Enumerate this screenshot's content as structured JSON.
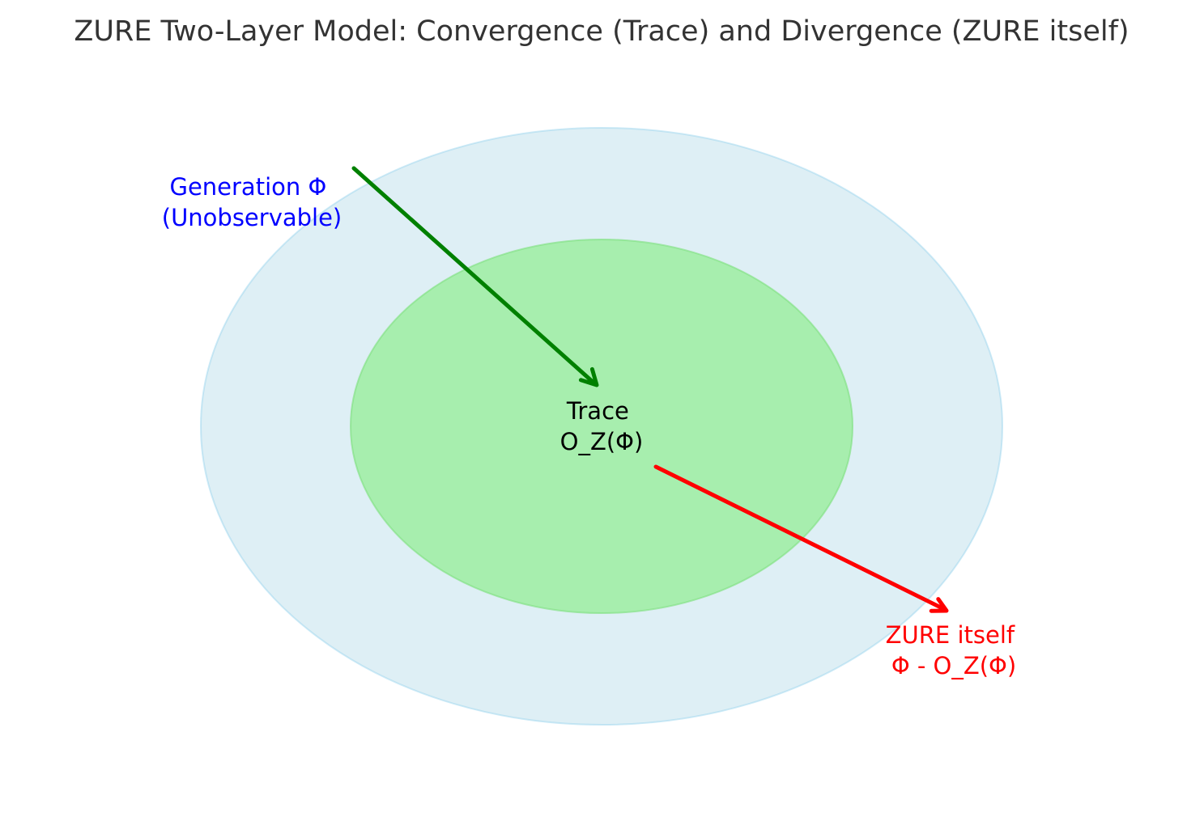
{
  "title": "ZURE Two-Layer Model: Convergence (Trace) and Divergence (ZURE itself)",
  "labels": {
    "generation": {
      "line1": "Generation Φ",
      "line2": "(Unobservable)"
    },
    "trace": {
      "line1": "Trace",
      "line2": "O_Z(Φ)"
    },
    "zure": {
      "line1": "ZURE itself",
      "line2": "Φ - O_Z(Φ)"
    }
  },
  "colors": {
    "title": "#333333",
    "outer_fill": "#add8e6",
    "outer_stroke": "#87ceeb",
    "inner_fill": "#90ee90",
    "inner_stroke": "#7be07b",
    "generation_label": "#0000ff",
    "trace_label": "#000000",
    "zure_label": "#ff0000",
    "convergence_arrow": "#008000",
    "divergence_arrow": "#ff0000"
  }
}
